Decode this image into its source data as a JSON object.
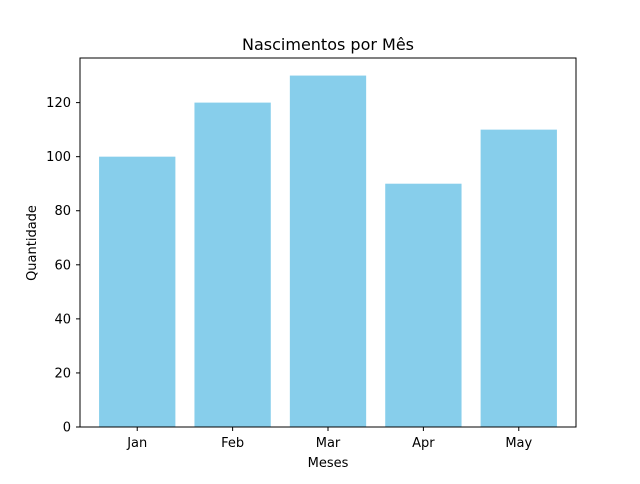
{
  "chart_data": {
    "type": "bar",
    "title": "Nascimentos por Mês",
    "xlabel": "Meses",
    "ylabel": "Quantidade",
    "categories": [
      "Jan",
      "Feb",
      "Mar",
      "Apr",
      "May"
    ],
    "values": [
      100,
      120,
      130,
      90,
      110
    ],
    "ylim": [
      0,
      136.5
    ],
    "yticks": [
      0,
      20,
      40,
      60,
      80,
      100,
      120
    ],
    "grid": false,
    "legend": "none",
    "bar_color": "#87CEEB"
  }
}
